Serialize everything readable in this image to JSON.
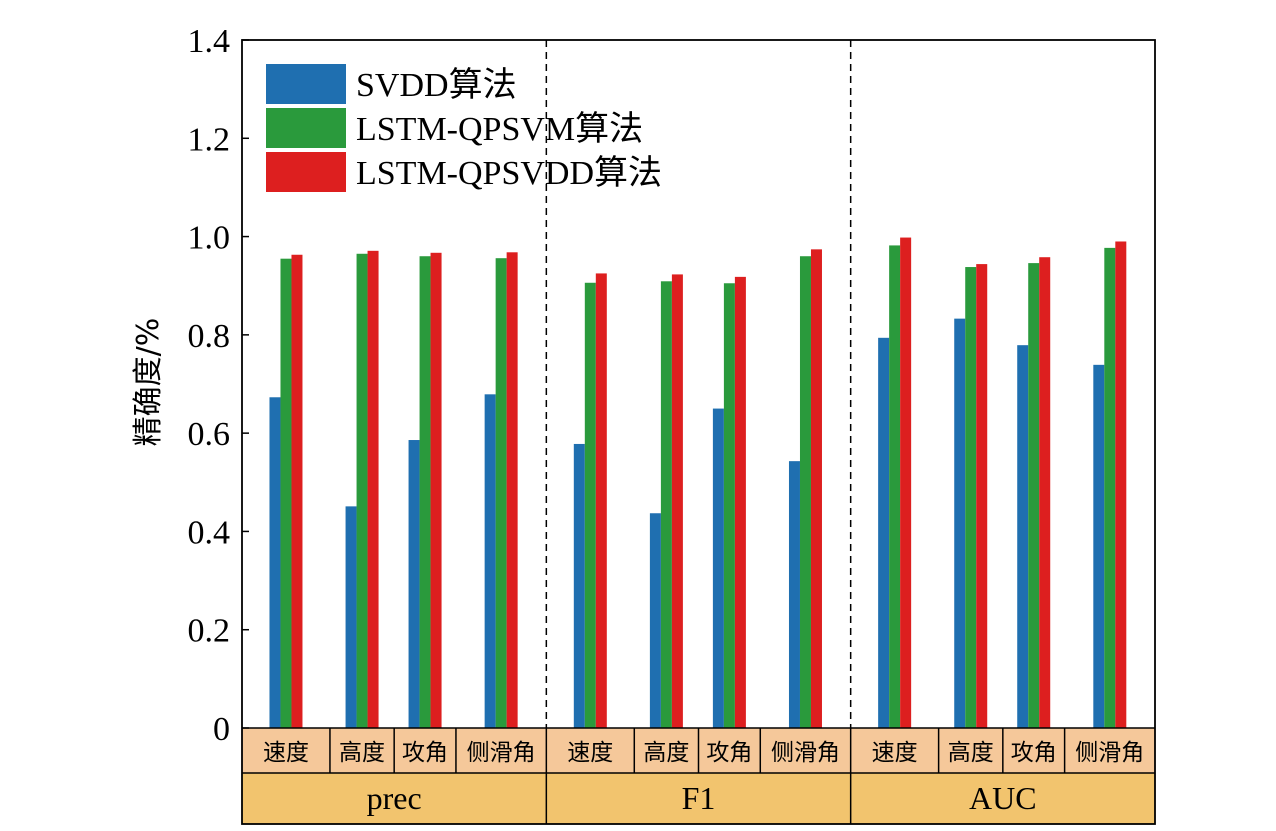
{
  "chart_data": {
    "type": "bar",
    "ylabel": "精确度/%",
    "ylim": [
      0,
      1.4
    ],
    "yticks": [
      "0",
      "0.2",
      "0.4",
      "0.6",
      "0.8",
      "1.0",
      "1.2",
      "1.4"
    ],
    "yticks_values": [
      0,
      0.2,
      0.4,
      0.6,
      0.8,
      1.0,
      1.2,
      1.4
    ],
    "grid": false,
    "legend_position": "top-left",
    "groups": [
      {
        "label": "prec",
        "categories": [
          "速度",
          "高度",
          "攻角",
          "侧滑角"
        ]
      },
      {
        "label": "F1",
        "categories": [
          "速度",
          "高度",
          "攻角",
          "侧滑角"
        ]
      },
      {
        "label": "AUC",
        "categories": [
          "速度",
          "高度",
          "攻角",
          "侧滑角"
        ]
      }
    ],
    "series": [
      {
        "name": "SVDD算法",
        "color": "#1f6fb0",
        "values": [
          0.673,
          0.451,
          0.586,
          0.679,
          0.578,
          0.437,
          0.65,
          0.543,
          0.794,
          0.833,
          0.779,
          0.739
        ]
      },
      {
        "name": "LSTM-QPSVM算法",
        "color": "#2a9a3c",
        "values": [
          0.955,
          0.965,
          0.96,
          0.956,
          0.906,
          0.909,
          0.905,
          0.96,
          0.982,
          0.938,
          0.946,
          0.977
        ]
      },
      {
        "name": "LSTM-QPSVDD算法",
        "color": "#dd1f1f",
        "values": [
          0.963,
          0.971,
          0.967,
          0.968,
          0.925,
          0.923,
          0.918,
          0.974,
          0.998,
          0.944,
          0.958,
          0.99
        ]
      }
    ],
    "category_band_color": "#f5c89a",
    "group_band_color": "#f2c46e"
  }
}
